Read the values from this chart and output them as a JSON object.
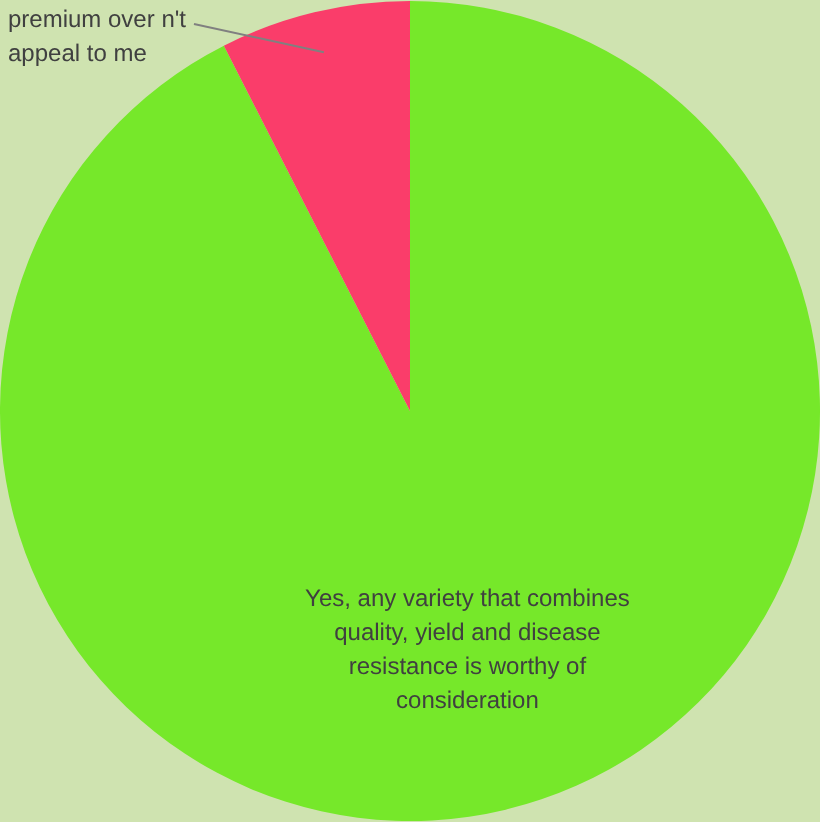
{
  "chart_data": {
    "type": "pie",
    "categories": [
      "Yes, any variety that combines quality, yield and disease resistance is worthy of consideration",
      "premium over n't appeal to me"
    ],
    "values": [
      92.5,
      7.5
    ],
    "colors": [
      "#76e82a",
      "#fa3d6a"
    ],
    "legend": false
  }
}
